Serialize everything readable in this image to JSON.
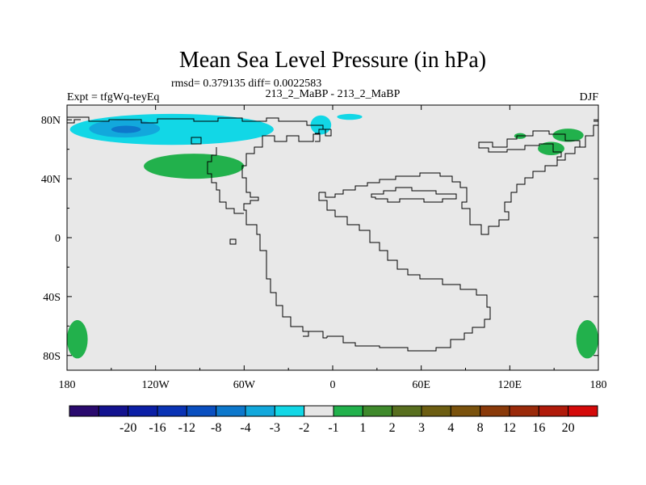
{
  "chart_data": {
    "type": "heatmap",
    "title": "Mean Sea Level Pressure (in hPa)",
    "stats_line": "rmsd= 0.379135 diff= 0.0022583",
    "left_label": "Expt = tfgWq-teyEq",
    "center_label": "213_2_MaBP - 213_2_MaBP",
    "right_label": "DJF",
    "x_ticks": [
      {
        "value": -180,
        "label": "180"
      },
      {
        "value": -120,
        "label": "120W"
      },
      {
        "value": -60,
        "label": "60W"
      },
      {
        "value": 0,
        "label": "0"
      },
      {
        "value": 60,
        "label": "60E"
      },
      {
        "value": 120,
        "label": "120E"
      },
      {
        "value": 180,
        "label": "180"
      }
    ],
    "y_ticks": [
      {
        "value": 80,
        "label": "80N"
      },
      {
        "value": 40,
        "label": "40N"
      },
      {
        "value": 0,
        "label": "0"
      },
      {
        "value": -40,
        "label": "40S"
      },
      {
        "value": -80,
        "label": "80S"
      }
    ],
    "xlim": [
      -180,
      180
    ],
    "ylim": [
      -90,
      90
    ],
    "background_color": "#e8e8e8",
    "colorbar": {
      "colors": [
        "#2a0a6e",
        "#13128f",
        "#0b1fa6",
        "#0a33b5",
        "#0a4fc0",
        "#0d78cc",
        "#12a8dc",
        "#12d7e6",
        "#e6e6e6",
        "#22b14c",
        "#3f8a2c",
        "#586f1f",
        "#6d5e12",
        "#7a520d",
        "#8a3a0a",
        "#9a2a0a",
        "#b01a0a",
        "#d40a0a"
      ],
      "labels": [
        "-20",
        "-16",
        "-12",
        "-8",
        "-4",
        "-3",
        "-2",
        "-1",
        "1",
        "2",
        "3",
        "4",
        "8",
        "12",
        "16",
        "20"
      ]
    },
    "anomaly_regions": [
      {
        "name": "north-pacific-cyan",
        "level": "-1",
        "color": "#12d7e6",
        "lon": [
          -178,
          -40
        ],
        "lat": [
          63,
          84
        ]
      },
      {
        "name": "north-pacific-blue",
        "level": "-2",
        "color": "#12a8dc",
        "lon": [
          -165,
          -117
        ],
        "lat": [
          68,
          80
        ]
      },
      {
        "name": "north-pacific-core",
        "level": "-3",
        "color": "#0d78cc",
        "lon": [
          -150,
          -130
        ],
        "lat": [
          71,
          76
        ]
      },
      {
        "name": "arctic-cyan-east",
        "level": "-1",
        "color": "#12d7e6",
        "lon": [
          -15,
          -1
        ],
        "lat": [
          70,
          83
        ]
      },
      {
        "name": "greenland-cyan",
        "level": "-1",
        "color": "#12d7e6",
        "lon": [
          3,
          20
        ],
        "lat": [
          80,
          84
        ]
      },
      {
        "name": "north-pacific-green",
        "level": "1",
        "color": "#22b14c",
        "lon": [
          -128,
          -60
        ],
        "lat": [
          40,
          57
        ]
      },
      {
        "name": "siberia-green-a",
        "level": "1",
        "color": "#22b14c",
        "lon": [
          149,
          170
        ],
        "lat": [
          65,
          74
        ]
      },
      {
        "name": "siberia-green-b",
        "level": "1",
        "color": "#22b14c",
        "lon": [
          139,
          157
        ],
        "lat": [
          56,
          65
        ]
      },
      {
        "name": "siberia-green-c",
        "level": "1",
        "color": "#22b14c",
        "lon": [
          123,
          131
        ],
        "lat": [
          67,
          71
        ]
      },
      {
        "name": "antarctic-green-west",
        "level": "1",
        "color": "#22b14c",
        "lon": [
          -180,
          -166
        ],
        "lat": [
          -82,
          -56
        ]
      },
      {
        "name": "antarctic-green-east",
        "level": "1",
        "color": "#22b14c",
        "lon": [
          165,
          180
        ],
        "lat": [
          -82,
          -56
        ]
      }
    ]
  }
}
